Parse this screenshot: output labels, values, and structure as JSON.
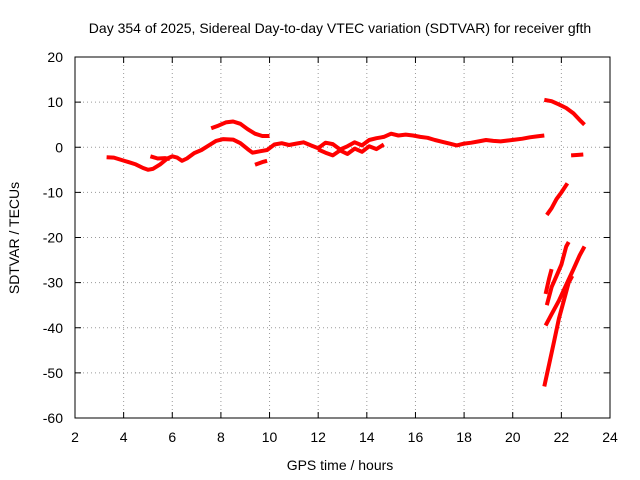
{
  "chart_data": {
    "type": "scatter",
    "title": "Day 354 of 2025, Sidereal Day-to-day VTEC variation (SDTVAR) for receiver gfth",
    "xlabel": "GPS time / hours",
    "ylabel": "SDTVAR / TECUs",
    "xlim": [
      2,
      24
    ],
    "ylim": [
      -60,
      20
    ],
    "xticks": [
      2,
      4,
      6,
      8,
      10,
      12,
      14,
      16,
      18,
      20,
      22,
      24
    ],
    "yticks": [
      -60,
      -50,
      -40,
      -30,
      -20,
      -10,
      0,
      10,
      20
    ],
    "grid": true,
    "color": "#ff0000",
    "segments": [
      {
        "name": "main-trace",
        "points": [
          [
            3.3,
            -2.2
          ],
          [
            3.6,
            -2.3
          ],
          [
            3.9,
            -2.8
          ],
          [
            4.2,
            -3.3
          ],
          [
            4.5,
            -3.8
          ],
          [
            4.8,
            -4.6
          ],
          [
            5.0,
            -5.0
          ],
          [
            5.2,
            -4.8
          ],
          [
            5.5,
            -3.8
          ],
          [
            5.8,
            -2.5
          ],
          [
            6.0,
            -2.0
          ],
          [
            6.2,
            -2.3
          ],
          [
            6.4,
            -3.0
          ],
          [
            6.6,
            -2.5
          ],
          [
            6.9,
            -1.3
          ],
          [
            7.2,
            -0.6
          ],
          [
            7.5,
            0.4
          ],
          [
            7.8,
            1.4
          ],
          [
            8.1,
            1.8
          ],
          [
            8.5,
            1.7
          ],
          [
            8.8,
            0.9
          ],
          [
            9.1,
            -0.4
          ],
          [
            9.3,
            -1.2
          ],
          [
            9.6,
            -0.9
          ],
          [
            9.9,
            -0.6
          ],
          [
            10.2,
            0.6
          ],
          [
            10.5,
            0.9
          ],
          [
            10.8,
            0.5
          ],
          [
            11.1,
            0.8
          ],
          [
            11.4,
            1.1
          ],
          [
            11.7,
            0.4
          ],
          [
            12.0,
            -0.2
          ],
          [
            12.3,
            1.0
          ],
          [
            12.6,
            0.7
          ],
          [
            12.9,
            -0.5
          ],
          [
            13.2,
            0.2
          ],
          [
            13.5,
            1.1
          ],
          [
            13.8,
            0.4
          ],
          [
            14.1,
            1.6
          ],
          [
            14.4,
            2.0
          ],
          [
            14.7,
            2.3
          ],
          [
            15.0,
            3.0
          ],
          [
            15.3,
            2.6
          ],
          [
            15.6,
            2.8
          ],
          [
            15.9,
            2.6
          ],
          [
            16.2,
            2.3
          ],
          [
            16.5,
            2.1
          ],
          [
            16.8,
            1.6
          ],
          [
            17.1,
            1.2
          ],
          [
            17.4,
            0.8
          ],
          [
            17.7,
            0.4
          ],
          [
            18.0,
            0.8
          ],
          [
            18.3,
            1.0
          ],
          [
            18.6,
            1.3
          ],
          [
            18.9,
            1.6
          ],
          [
            19.2,
            1.4
          ],
          [
            19.5,
            1.3
          ],
          [
            19.8,
            1.5
          ],
          [
            20.1,
            1.7
          ],
          [
            20.4,
            1.9
          ],
          [
            20.7,
            2.2
          ],
          [
            21.0,
            2.4
          ],
          [
            21.3,
            2.6
          ]
        ]
      },
      {
        "name": "lower-wiggle",
        "points": [
          [
            12.0,
            -0.5
          ],
          [
            12.3,
            -1.2
          ],
          [
            12.6,
            -1.8
          ],
          [
            12.9,
            -0.7
          ],
          [
            13.2,
            -1.5
          ],
          [
            13.5,
            -0.3
          ],
          [
            13.8,
            -1.0
          ],
          [
            14.1,
            0.2
          ],
          [
            14.4,
            -0.4
          ],
          [
            14.7,
            0.6
          ]
        ]
      },
      {
        "name": "dip-near-5h",
        "points": [
          [
            5.1,
            -2.0
          ],
          [
            5.4,
            -2.5
          ],
          [
            5.7,
            -2.4
          ],
          [
            5.9,
            -2.6
          ]
        ]
      },
      {
        "name": "arc-8-10h",
        "points": [
          [
            7.6,
            4.2
          ],
          [
            7.9,
            4.8
          ],
          [
            8.2,
            5.5
          ],
          [
            8.5,
            5.7
          ],
          [
            8.8,
            5.2
          ],
          [
            9.1,
            4.0
          ],
          [
            9.4,
            3.0
          ],
          [
            9.7,
            2.5
          ],
          [
            10.0,
            2.5
          ]
        ]
      },
      {
        "name": "short-9-10h",
        "points": [
          [
            9.4,
            -3.9
          ],
          [
            9.7,
            -3.3
          ],
          [
            9.9,
            -3.0
          ]
        ]
      },
      {
        "name": "late-high",
        "points": [
          [
            21.3,
            10.5
          ],
          [
            21.6,
            10.2
          ],
          [
            21.9,
            9.5
          ],
          [
            22.2,
            8.7
          ],
          [
            22.5,
            7.5
          ],
          [
            22.8,
            5.8
          ],
          [
            22.95,
            5.0
          ]
        ]
      },
      {
        "name": "late-small",
        "points": [
          [
            22.4,
            -1.8
          ],
          [
            22.7,
            -1.7
          ],
          [
            22.9,
            -1.6
          ]
        ]
      },
      {
        "name": "late-15",
        "points": [
          [
            21.4,
            -15.0
          ],
          [
            21.6,
            -13.5
          ],
          [
            21.8,
            -11.5
          ],
          [
            22.0,
            -10.0
          ],
          [
            22.25,
            -8.0
          ]
        ]
      },
      {
        "name": "late-strip-a",
        "points": [
          [
            21.35,
            -32.5
          ],
          [
            21.5,
            -29.0
          ],
          [
            21.6,
            -27.0
          ]
        ]
      },
      {
        "name": "late-strip-b",
        "points": [
          [
            21.4,
            -35.0
          ],
          [
            21.6,
            -31.0
          ],
          [
            21.8,
            -28.5
          ],
          [
            22.0,
            -26.0
          ],
          [
            22.2,
            -22.0
          ],
          [
            22.3,
            -21.0
          ]
        ]
      },
      {
        "name": "late-strip-c",
        "points": [
          [
            21.35,
            -39.5
          ],
          [
            21.6,
            -37.0
          ],
          [
            21.9,
            -34.0
          ],
          [
            22.2,
            -30.5
          ],
          [
            22.5,
            -27.0
          ],
          [
            22.75,
            -24.0
          ],
          [
            22.95,
            -22.0
          ]
        ]
      },
      {
        "name": "late-strip-d",
        "points": [
          [
            21.3,
            -53.0
          ],
          [
            21.5,
            -48.0
          ],
          [
            21.7,
            -43.0
          ],
          [
            21.9,
            -38.0
          ],
          [
            22.1,
            -34.0
          ],
          [
            22.3,
            -30.0
          ],
          [
            22.45,
            -28.5
          ]
        ]
      }
    ]
  }
}
